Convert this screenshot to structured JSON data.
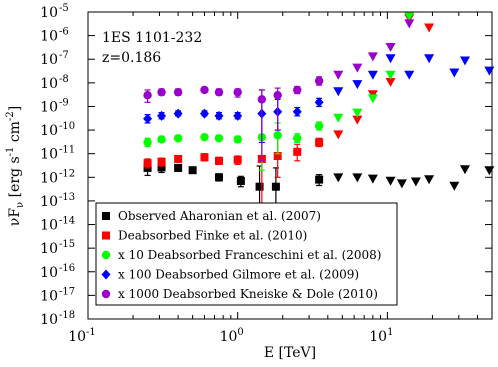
{
  "chart_data": {
    "type": "scatter",
    "x_scale": "log",
    "y_scale": "log",
    "xlim": [
      0.1,
      50
    ],
    "ylim": [
      1e-18,
      1e-05
    ],
    "xlabel": "E [TeV]",
    "ylabel": "νFν [erg s⁻¹ cm⁻²]",
    "x_ticks": [
      {
        "value": 0.1,
        "base": "10",
        "exp": "-1"
      },
      {
        "value": 1,
        "base": "10",
        "exp": "0"
      },
      {
        "value": 10,
        "base": "10",
        "exp": "1"
      }
    ],
    "y_ticks": [
      {
        "value": 1e-18,
        "base": "10",
        "exp": "-18"
      },
      {
        "value": 1e-17,
        "base": "10",
        "exp": "-17"
      },
      {
        "value": 1e-16,
        "base": "10",
        "exp": "-16"
      },
      {
        "value": 1e-15,
        "base": "10",
        "exp": "-15"
      },
      {
        "value": 1e-14,
        "base": "10",
        "exp": "-14"
      },
      {
        "value": 1e-13,
        "base": "10",
        "exp": "-13"
      },
      {
        "value": 1e-12,
        "base": "10",
        "exp": "-12"
      },
      {
        "value": 1e-11,
        "base": "10",
        "exp": "-11"
      },
      {
        "value": 1e-10,
        "base": "10",
        "exp": "-10"
      },
      {
        "value": 1e-09,
        "base": "10",
        "exp": "-9"
      },
      {
        "value": 1e-08,
        "base": "10",
        "exp": "-8"
      },
      {
        "value": 1e-07,
        "base": "10",
        "exp": "-7"
      },
      {
        "value": 1e-06,
        "base": "10",
        "exp": "-6"
      },
      {
        "value": 1e-05,
        "base": "10",
        "exp": "-5"
      }
    ],
    "annotations": [
      "1ES 1101-232",
      "z=0.186"
    ],
    "legend_position": "bottom-left",
    "series": [
      {
        "name": "Observed Aharonian et al. (2007)",
        "color": "#000000",
        "marker": "square",
        "points": [
          {
            "x": 0.25,
            "y": 2.5e-12,
            "yerr": [
              1.2e-12,
              5e-12
            ]
          },
          {
            "x": 0.31,
            "y": 2.6e-12,
            "yerr": [
              1.6e-12,
              4e-12
            ]
          },
          {
            "x": 0.4,
            "y": 2.5e-12,
            "yerr": [
              1.8e-12,
              3.2e-12
            ]
          },
          {
            "x": 0.5,
            "y": 2e-12,
            "yerr": [
              1.6e-12,
              2.5e-12
            ]
          },
          {
            "x": 0.75,
            "y": 1e-12,
            "yerr": [
              7e-13,
              1.4e-12
            ]
          },
          {
            "x": 1.05,
            "y": 7e-13,
            "yerr": [
              4e-13,
              1.1e-12
            ]
          },
          {
            "x": 1.4,
            "y": 4e-13,
            "yerr": [
              1e-14,
              3e-12
            ]
          },
          {
            "x": 1.8,
            "y": 4e-13,
            "yerr": [
              1e-14,
              2.5e-12
            ]
          },
          {
            "x": 3.5,
            "y": 8e-13,
            "yerr": [
              4.5e-13,
              1.3e-12
            ]
          }
        ],
        "limits": [
          {
            "x": 4.7,
            "y": 9e-13
          },
          {
            "x": 6.3,
            "y": 9e-13
          },
          {
            "x": 8.0,
            "y": 8e-13
          },
          {
            "x": 10.5,
            "y": 6.5e-13
          },
          {
            "x": 12.5,
            "y": 5e-13
          },
          {
            "x": 15.5,
            "y": 6e-13
          },
          {
            "x": 19,
            "y": 7.5e-13
          },
          {
            "x": 28,
            "y": 4e-13
          },
          {
            "x": 33,
            "y": 2e-12
          },
          {
            "x": 48,
            "y": 1.8e-12
          }
        ]
      },
      {
        "name": "Deabsorbed Finke et al. (2010)",
        "color": "#ff0000",
        "marker": "square",
        "points": [
          {
            "x": 0.25,
            "y": 4e-12,
            "yerr": [
              2.5e-12,
              6e-12
            ]
          },
          {
            "x": 0.31,
            "y": 4.5e-12,
            "yerr": [
              3e-12,
              6.5e-12
            ]
          },
          {
            "x": 0.4,
            "y": 6e-12,
            "yerr": [
              4.5e-12,
              8e-12
            ]
          },
          {
            "x": 0.6,
            "y": 7e-12,
            "yerr": [
              5e-12,
              1e-11
            ]
          },
          {
            "x": 0.75,
            "y": 5e-12,
            "yerr": [
              3.5e-12,
              7e-12
            ]
          },
          {
            "x": 1.0,
            "y": 5.5e-12,
            "yerr": [
              3.5e-12,
              8e-12
            ]
          },
          {
            "x": 1.45,
            "y": 6e-12,
            "yerr": [
              5e-14,
              5e-11
            ]
          },
          {
            "x": 1.85,
            "y": 8e-12,
            "yerr": [
              1e-12,
              6e-11
            ]
          },
          {
            "x": 2.5,
            "y": 1.2e-11,
            "yerr": [
              5e-12,
              2.5e-11
            ]
          },
          {
            "x": 3.5,
            "y": 3e-11,
            "yerr": [
              2e-11,
              4.5e-11
            ]
          }
        ],
        "limits": [
          {
            "x": 4.7,
            "y": 6e-11
          },
          {
            "x": 6.3,
            "y": 2.5e-10
          },
          {
            "x": 8.0,
            "y": 3e-09
          },
          {
            "x": 10.5,
            "y": 1e-08
          },
          {
            "x": 14,
            "y": 5e-06
          },
          {
            "x": 19,
            "y": 2e-06
          }
        ]
      },
      {
        "name": "x 10 Deabsorbed Franceschini et al. (2008)",
        "color": "#00ff00",
        "marker": "circle",
        "points": [
          {
            "x": 0.25,
            "y": 3e-11,
            "yerr": [
              2e-11,
              4.5e-11
            ]
          },
          {
            "x": 0.31,
            "y": 4e-11,
            "yerr": [
              3e-11,
              5.5e-11
            ]
          },
          {
            "x": 0.4,
            "y": 4.5e-11,
            "yerr": [
              3.5e-11,
              6e-11
            ]
          },
          {
            "x": 0.6,
            "y": 5e-11,
            "yerr": [
              4e-11,
              6.5e-11
            ]
          },
          {
            "x": 0.75,
            "y": 4.5e-11,
            "yerr": [
              3.5e-11,
              6e-11
            ]
          },
          {
            "x": 1.0,
            "y": 4e-11,
            "yerr": [
              3e-11,
              5.5e-11
            ]
          },
          {
            "x": 1.45,
            "y": 5e-11,
            "yerr": [
              2e-12,
              5e-10
            ]
          },
          {
            "x": 1.85,
            "y": 6e-11,
            "yerr": [
              1e-11,
              2e-10
            ]
          },
          {
            "x": 2.5,
            "y": 4.5e-11,
            "yerr": [
              3e-11,
              7e-11
            ]
          },
          {
            "x": 3.5,
            "y": 1.5e-10,
            "yerr": [
              1e-10,
              2.2e-10
            ]
          }
        ],
        "limits": [
          {
            "x": 4.7,
            "y": 3e-10
          },
          {
            "x": 6.3,
            "y": 5e-10
          },
          {
            "x": 8.0,
            "y": 2e-09
          },
          {
            "x": 10.5,
            "y": 2e-08
          },
          {
            "x": 14,
            "y": 6e-06
          }
        ]
      },
      {
        "name": "x 100 Deabsorbed Gilmore et al. (2009)",
        "color": "#0000ff",
        "marker": "diamond",
        "points": [
          {
            "x": 0.25,
            "y": 3e-10,
            "yerr": [
              2e-10,
              4.5e-10
            ]
          },
          {
            "x": 0.31,
            "y": 4e-10,
            "yerr": [
              3e-10,
              5.5e-10
            ]
          },
          {
            "x": 0.4,
            "y": 5e-10,
            "yerr": [
              4e-10,
              6.5e-10
            ]
          },
          {
            "x": 0.6,
            "y": 5e-10,
            "yerr": [
              4e-10,
              6.5e-10
            ]
          },
          {
            "x": 0.75,
            "y": 4e-10,
            "yerr": [
              3e-10,
              5.5e-10
            ]
          },
          {
            "x": 1.0,
            "y": 4e-10,
            "yerr": [
              3e-10,
              5.5e-10
            ]
          },
          {
            "x": 1.45,
            "y": 5e-10,
            "yerr": [
              3e-11,
              5e-09
            ]
          },
          {
            "x": 1.85,
            "y": 6e-10,
            "yerr": [
              1e-10,
              2e-09
            ]
          },
          {
            "x": 2.5,
            "y": 6e-10,
            "yerr": [
              4e-10,
              9e-10
            ]
          },
          {
            "x": 3.5,
            "y": 1.5e-09,
            "yerr": [
              1e-09,
              2.2e-09
            ]
          }
        ],
        "limits": [
          {
            "x": 4.7,
            "y": 4e-09
          },
          {
            "x": 6.3,
            "y": 8e-09
          },
          {
            "x": 8.0,
            "y": 2e-08
          },
          {
            "x": 10.5,
            "y": 1e-07
          },
          {
            "x": 14,
            "y": 2e-08
          },
          {
            "x": 19,
            "y": 1e-07
          },
          {
            "x": 28,
            "y": 2.5e-08
          },
          {
            "x": 33,
            "y": 8e-08
          },
          {
            "x": 48,
            "y": 3e-08
          }
        ]
      },
      {
        "name": "x 1000 Deabsorbed Kneiske & Dole (2010)",
        "color": "#9900cc",
        "marker": "circle",
        "points": [
          {
            "x": 0.25,
            "y": 3e-09,
            "yerr": [
              1.5e-09,
              5e-09
            ]
          },
          {
            "x": 0.31,
            "y": 4e-09,
            "yerr": [
              3e-09,
              5.5e-09
            ]
          },
          {
            "x": 0.4,
            "y": 4e-09,
            "yerr": [
              3e-09,
              5.5e-09
            ]
          },
          {
            "x": 0.6,
            "y": 5e-09,
            "yerr": [
              4e-09,
              6.5e-09
            ]
          },
          {
            "x": 0.75,
            "y": 4e-09,
            "yerr": [
              3e-09,
              5.5e-09
            ]
          },
          {
            "x": 1.0,
            "y": 4e-09,
            "yerr": [
              2.5e-09,
              5.5e-09
            ]
          },
          {
            "x": 1.45,
            "y": 2e-09,
            "yerr": [
              5e-12,
              5e-09
            ]
          },
          {
            "x": 1.85,
            "y": 3e-09,
            "yerr": [
              1e-10,
              6e-09
            ]
          },
          {
            "x": 2.5,
            "y": 5e-09,
            "yerr": [
              3.5e-09,
              7e-09
            ]
          },
          {
            "x": 3.5,
            "y": 1.2e-08,
            "yerr": [
              8e-09,
              1.8e-08
            ]
          }
        ],
        "limits": [
          {
            "x": 4.7,
            "y": 2e-08
          },
          {
            "x": 6.3,
            "y": 4e-08
          },
          {
            "x": 8.0,
            "y": 1.2e-07
          },
          {
            "x": 10.5,
            "y": 3e-07
          },
          {
            "x": 14,
            "y": 3e-06
          }
        ]
      }
    ]
  }
}
